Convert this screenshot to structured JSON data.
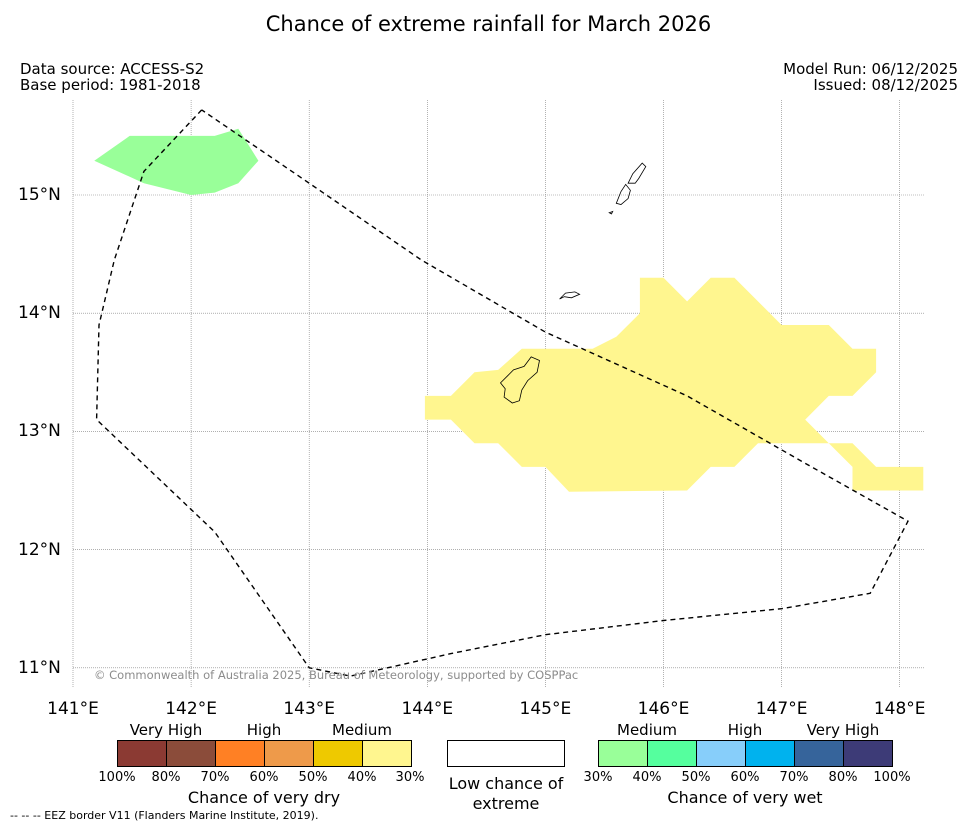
{
  "title": "Chance of extreme rainfall for March 2026",
  "header": {
    "data_source": "Data source: ACCESS-S2",
    "base_period": "Base period: 1981-2018",
    "model_run": "Model Run: 06/12/2025",
    "issued": "Issued: 08/12/2025"
  },
  "axes": {
    "lon_labels": [
      "141°E",
      "142°E",
      "143°E",
      "144°E",
      "145°E",
      "146°E",
      "147°E",
      "148°E"
    ],
    "lat_labels": [
      "15°N",
      "14°N",
      "13°N",
      "12°N",
      "11°N"
    ]
  },
  "map": {
    "extent": {
      "lon_min": 141.0,
      "lon_max": 148.2,
      "lat_min": 10.85,
      "lat_max": 15.8
    },
    "regions": [
      {
        "name": "green-wet-region",
        "category": "very wet medium (30-40%)",
        "color": "#99ff99",
        "polygon": [
          [
            141.18,
            15.29
          ],
          [
            141.48,
            15.5
          ],
          [
            142.2,
            15.5
          ],
          [
            142.4,
            15.56
          ],
          [
            142.57,
            15.29
          ],
          [
            142.4,
            15.1
          ],
          [
            142.2,
            15.02
          ],
          [
            142.0,
            15.0
          ],
          [
            141.6,
            15.1
          ]
        ]
      },
      {
        "name": "yellow-dry-region",
        "category": "very dry medium (30-40%)",
        "color": "#fff68f",
        "polygon": [
          [
            143.98,
            13.3
          ],
          [
            144.2,
            13.3
          ],
          [
            144.4,
            13.5
          ],
          [
            144.6,
            13.52
          ],
          [
            144.8,
            13.7
          ],
          [
            145.4,
            13.7
          ],
          [
            145.6,
            13.8
          ],
          [
            145.8,
            14.0
          ],
          [
            145.8,
            14.3
          ],
          [
            146.0,
            14.3
          ],
          [
            146.2,
            14.1
          ],
          [
            146.4,
            14.3
          ],
          [
            146.6,
            14.3
          ],
          [
            146.8,
            14.1
          ],
          [
            147.0,
            13.9
          ],
          [
            147.4,
            13.9
          ],
          [
            147.6,
            13.7
          ],
          [
            147.8,
            13.7
          ],
          [
            147.8,
            13.5
          ],
          [
            147.6,
            13.3
          ],
          [
            147.4,
            13.3
          ],
          [
            147.2,
            13.1
          ],
          [
            147.4,
            12.9
          ],
          [
            147.6,
            12.9
          ],
          [
            147.8,
            12.7
          ],
          [
            148.2,
            12.7
          ],
          [
            148.2,
            12.5
          ],
          [
            147.6,
            12.5
          ],
          [
            147.6,
            12.7
          ],
          [
            147.4,
            12.9
          ],
          [
            146.8,
            12.9
          ],
          [
            146.6,
            12.7
          ],
          [
            146.4,
            12.7
          ],
          [
            146.2,
            12.5
          ],
          [
            145.2,
            12.49
          ],
          [
            145.0,
            12.7
          ],
          [
            144.8,
            12.7
          ],
          [
            144.6,
            12.9
          ],
          [
            144.4,
            12.9
          ],
          [
            144.2,
            13.1
          ],
          [
            143.98,
            13.1
          ]
        ]
      }
    ],
    "islands": [
      {
        "name": "guam",
        "polygon": [
          [
            144.62,
            13.41
          ],
          [
            144.68,
            13.47
          ],
          [
            144.73,
            13.52
          ],
          [
            144.82,
            13.55
          ],
          [
            144.88,
            13.63
          ],
          [
            144.95,
            13.6
          ],
          [
            144.93,
            13.5
          ],
          [
            144.85,
            13.43
          ],
          [
            144.8,
            13.35
          ],
          [
            144.78,
            13.26
          ],
          [
            144.72,
            13.24
          ],
          [
            144.65,
            13.29
          ],
          [
            144.66,
            13.36
          ],
          [
            144.62,
            13.41
          ]
        ]
      },
      {
        "name": "rota",
        "polygon": [
          [
            145.12,
            14.12
          ],
          [
            145.17,
            14.17
          ],
          [
            145.25,
            14.18
          ],
          [
            145.29,
            14.16
          ],
          [
            145.22,
            14.13
          ],
          [
            145.16,
            14.14
          ],
          [
            145.12,
            14.12
          ]
        ]
      },
      {
        "name": "tinian",
        "polygon": [
          [
            145.6,
            14.93
          ],
          [
            145.64,
            15.03
          ],
          [
            145.68,
            15.09
          ],
          [
            145.72,
            15.04
          ],
          [
            145.7,
            14.97
          ],
          [
            145.64,
            14.92
          ],
          [
            145.6,
            14.93
          ]
        ]
      },
      {
        "name": "saipan",
        "polygon": [
          [
            145.7,
            15.1
          ],
          [
            145.74,
            15.18
          ],
          [
            145.82,
            15.27
          ],
          [
            145.85,
            15.24
          ],
          [
            145.79,
            15.14
          ],
          [
            145.76,
            15.1
          ],
          [
            145.7,
            15.1
          ]
        ]
      },
      {
        "name": "aguijan",
        "polygon": [
          [
            145.54,
            14.85
          ],
          [
            145.57,
            14.86
          ],
          [
            145.56,
            14.84
          ],
          [
            145.54,
            14.85
          ]
        ]
      }
    ],
    "eez_border": [
      [
        142.09,
        15.72
      ],
      [
        141.6,
        15.2
      ],
      [
        141.35,
        14.45
      ],
      [
        141.22,
        13.9
      ],
      [
        141.2,
        13.1
      ],
      [
        142.2,
        12.15
      ],
      [
        143.0,
        11.0
      ],
      [
        143.35,
        10.93
      ],
      [
        144.2,
        11.12
      ],
      [
        145.0,
        11.28
      ],
      [
        146.0,
        11.4
      ],
      [
        147.0,
        11.5
      ],
      [
        147.75,
        11.63
      ],
      [
        148.07,
        12.24
      ],
      [
        147.2,
        12.73
      ],
      [
        146.2,
        13.3
      ],
      [
        145.0,
        13.84
      ],
      [
        143.95,
        14.45
      ],
      [
        143.0,
        15.1
      ],
      [
        142.09,
        15.72
      ]
    ]
  },
  "copyright": "© Commonwealth of Australia 2025, Bureau of Meteorology, supported by COSPPac",
  "legend": {
    "dry": {
      "categories": [
        "Very High",
        "High",
        "Medium"
      ],
      "colors": [
        "#8b3a33",
        "#8b4c3a",
        "#ff8024",
        "#ee9a4a",
        "#eec900",
        "#fff68f"
      ],
      "ticks": [
        "100%",
        "80%",
        "70%",
        "60%",
        "50%",
        "40%",
        "30%"
      ],
      "caption": "Chance of very dry"
    },
    "low": {
      "color": "#ffffff",
      "caption": "Low chance of extreme"
    },
    "wet": {
      "categories": [
        "Medium",
        "High",
        "Very High"
      ],
      "colors": [
        "#99ff99",
        "#55ff9e",
        "#87cefa",
        "#00b2ee",
        "#36649b",
        "#3d3b77"
      ],
      "ticks": [
        "30%",
        "40%",
        "50%",
        "60%",
        "70%",
        "80%",
        "100%"
      ],
      "caption": "Chance of very wet"
    }
  },
  "footnote": "-- -- -- EEZ border V11 (Flanders Marine Institute, 2019)."
}
